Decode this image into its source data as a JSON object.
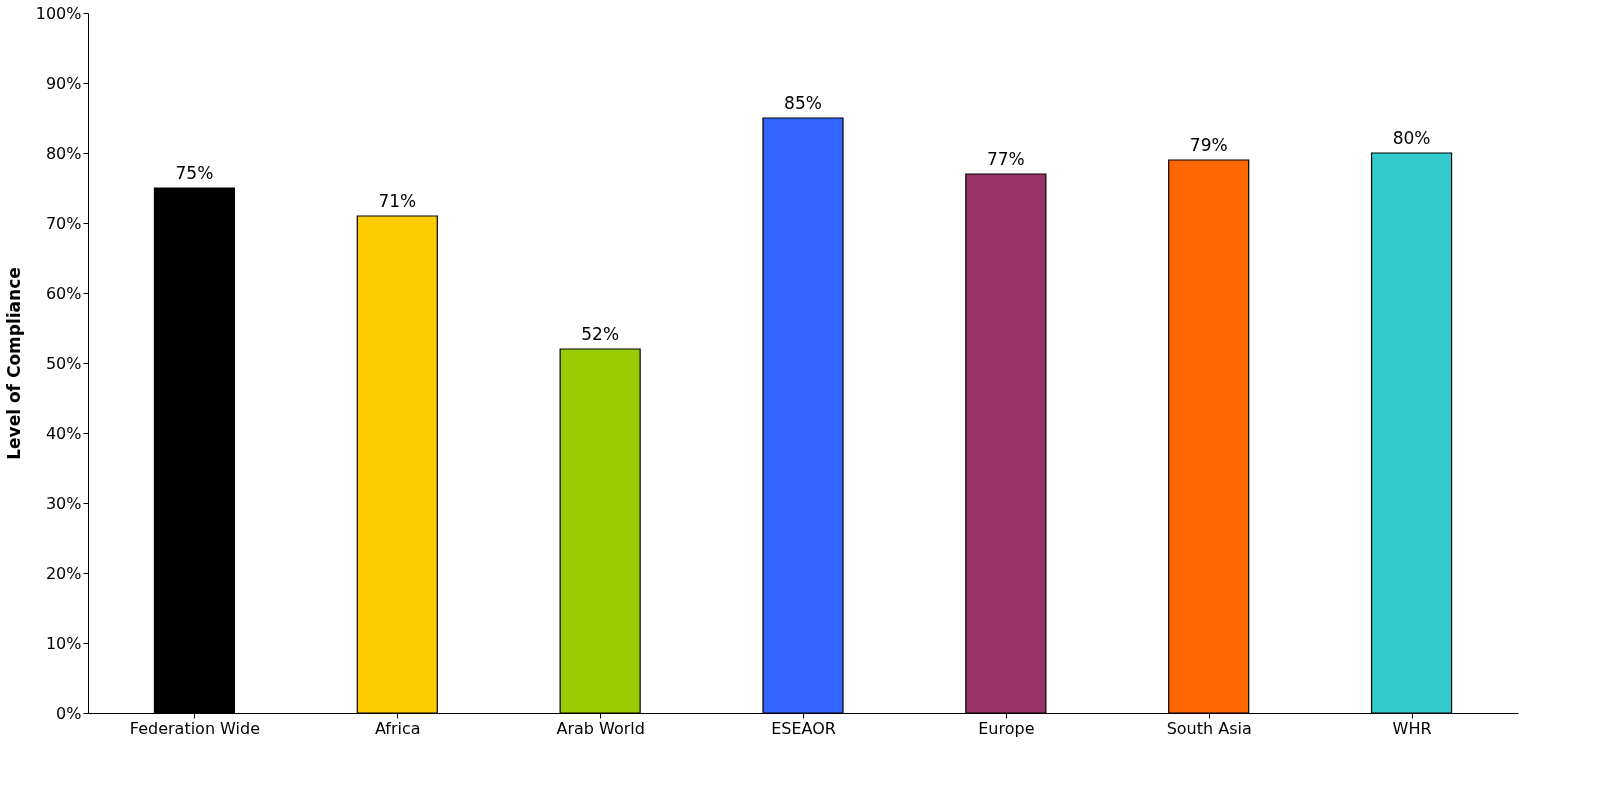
{
  "chart_data": {
    "type": "bar",
    "ylabel": "Level of Compliance",
    "categories": [
      "Federation Wide",
      "Africa",
      "Arab World",
      "ESEAOR",
      "Europe",
      "South Asia",
      "WHR"
    ],
    "values": [
      75,
      71,
      52,
      85,
      77,
      79,
      80
    ],
    "colors": [
      "#000000",
      "#ffcc00",
      "#99cc00",
      "#3366ff",
      "#993366",
      "#ff6600",
      "#33cccc"
    ],
    "value_labels": [
      "75%",
      "71%",
      "52%",
      "85%",
      "77%",
      "79%",
      "80%"
    ],
    "ylim": [
      0,
      100
    ],
    "yticks": [
      {
        "value": 0,
        "label": "0%"
      },
      {
        "value": 10,
        "label": "10%"
      },
      {
        "value": 20,
        "label": "20%"
      },
      {
        "value": 30,
        "label": "30%"
      },
      {
        "value": 40,
        "label": "40%"
      },
      {
        "value": 50,
        "label": "50%"
      },
      {
        "value": 60,
        "label": "60%"
      },
      {
        "value": 70,
        "label": "70%"
      },
      {
        "value": 80,
        "label": "80%"
      },
      {
        "value": 90,
        "label": "90%"
      },
      {
        "value": 100,
        "label": "100%"
      }
    ],
    "grid": false
  }
}
